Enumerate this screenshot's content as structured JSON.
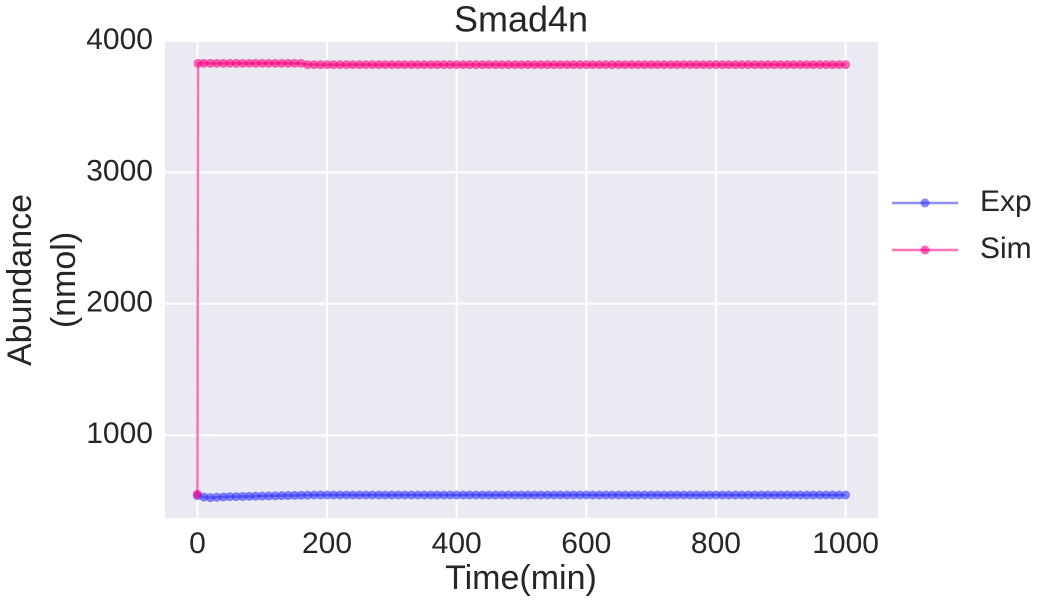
{
  "chart_data": {
    "type": "line",
    "title": "Smad4n",
    "xlabel": "Time(min)",
    "ylabel": [
      "Abundance",
      "(nmol)"
    ],
    "xlim": [
      -50,
      1050
    ],
    "ylim": [
      370,
      4000
    ],
    "xticks": [
      0,
      200,
      400,
      600,
      800,
      1000
    ],
    "yticks": [
      1000,
      2000,
      3000,
      4000
    ],
    "grid": true,
    "legend": "outside-right",
    "series": [
      {
        "name": "Exp",
        "color": "#3333ff",
        "x": [
          0,
          10,
          20,
          30,
          40,
          50,
          60,
          70,
          80,
          90,
          100,
          110,
          120,
          130,
          140,
          150,
          160,
          170,
          180,
          190,
          200,
          210,
          220,
          230,
          240,
          250,
          260,
          270,
          280,
          290,
          300,
          310,
          320,
          330,
          340,
          350,
          360,
          370,
          380,
          390,
          400,
          410,
          420,
          430,
          440,
          450,
          460,
          470,
          480,
          490,
          500,
          510,
          520,
          530,
          540,
          550,
          560,
          570,
          580,
          590,
          600,
          610,
          620,
          630,
          640,
          650,
          660,
          670,
          680,
          690,
          700,
          710,
          720,
          730,
          740,
          750,
          760,
          770,
          780,
          790,
          800,
          810,
          820,
          830,
          840,
          850,
          860,
          870,
          880,
          890,
          900,
          910,
          920,
          930,
          940,
          950,
          960,
          970,
          980,
          990,
          1000
        ],
        "values": [
          540,
          530,
          525,
          528,
          530,
          532,
          533,
          534,
          535,
          536,
          537,
          538,
          539,
          540,
          541,
          542,
          543,
          544,
          545,
          545,
          545,
          545,
          545,
          545,
          545,
          545,
          545,
          545,
          545,
          545,
          545,
          545,
          545,
          545,
          545,
          545,
          545,
          545,
          545,
          545,
          545,
          545,
          545,
          545,
          545,
          545,
          545,
          545,
          545,
          545,
          545,
          545,
          545,
          545,
          545,
          545,
          545,
          545,
          545,
          545,
          545,
          545,
          545,
          545,
          545,
          545,
          545,
          545,
          545,
          545,
          545,
          545,
          545,
          545,
          545,
          545,
          545,
          545,
          545,
          545,
          545,
          545,
          545,
          545,
          545,
          545,
          545,
          545,
          545,
          545,
          545,
          545,
          545,
          545,
          545,
          545,
          545,
          545,
          545,
          545,
          545
        ]
      },
      {
        "name": "Sim",
        "color": "#ff0080",
        "x": [
          0,
          1,
          10,
          20,
          30,
          40,
          50,
          60,
          70,
          80,
          90,
          100,
          110,
          120,
          130,
          140,
          150,
          160,
          170,
          180,
          190,
          200,
          210,
          220,
          230,
          240,
          250,
          260,
          270,
          280,
          290,
          300,
          310,
          320,
          330,
          340,
          350,
          360,
          370,
          380,
          390,
          400,
          410,
          420,
          430,
          440,
          450,
          460,
          470,
          480,
          490,
          500,
          510,
          520,
          530,
          540,
          550,
          560,
          570,
          580,
          590,
          600,
          610,
          620,
          630,
          640,
          650,
          660,
          670,
          680,
          690,
          700,
          710,
          720,
          730,
          740,
          750,
          760,
          770,
          780,
          790,
          800,
          810,
          820,
          830,
          840,
          850,
          860,
          870,
          880,
          890,
          900,
          910,
          920,
          930,
          940,
          950,
          960,
          970,
          980,
          990,
          1000
        ],
        "values": [
          550,
          3830,
          3830,
          3830,
          3830,
          3830,
          3830,
          3830,
          3830,
          3830,
          3830,
          3830,
          3830,
          3830,
          3830,
          3830,
          3830,
          3830,
          3820,
          3820,
          3820,
          3820,
          3820,
          3820,
          3820,
          3820,
          3820,
          3820,
          3820,
          3820,
          3820,
          3820,
          3820,
          3820,
          3820,
          3820,
          3820,
          3820,
          3820,
          3820,
          3820,
          3820,
          3820,
          3820,
          3820,
          3820,
          3820,
          3820,
          3820,
          3820,
          3820,
          3820,
          3820,
          3820,
          3820,
          3820,
          3820,
          3820,
          3820,
          3820,
          3820,
          3820,
          3820,
          3820,
          3820,
          3820,
          3820,
          3820,
          3820,
          3820,
          3820,
          3820,
          3820,
          3820,
          3820,
          3820,
          3820,
          3820,
          3820,
          3820,
          3820,
          3820,
          3820,
          3820,
          3820,
          3820,
          3820,
          3820,
          3820,
          3820,
          3820,
          3820,
          3820,
          3820,
          3820,
          3820,
          3820,
          3820,
          3820,
          3820,
          3820,
          3820
        ]
      }
    ]
  }
}
